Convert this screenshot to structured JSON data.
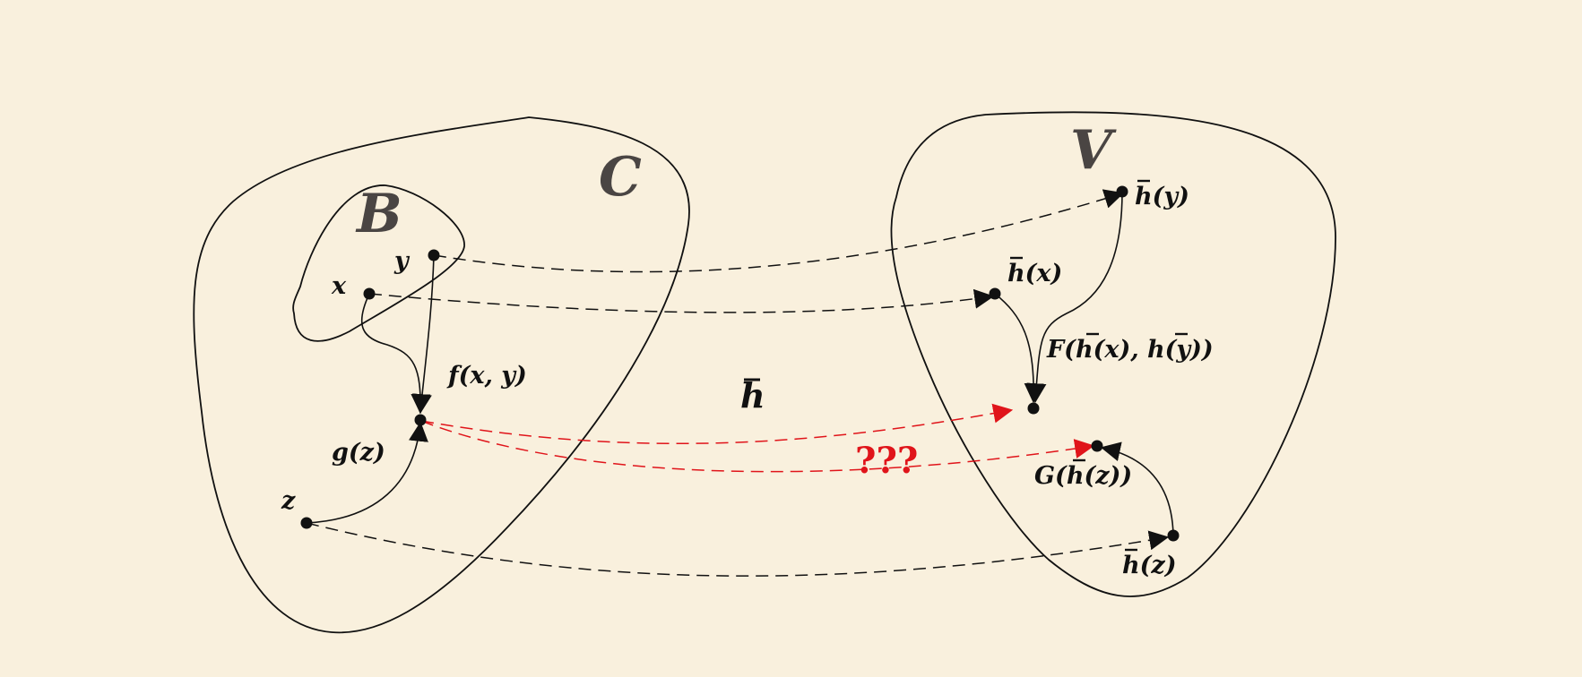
{
  "sets": {
    "C": "C",
    "B": "B",
    "V": "V"
  },
  "points": {
    "x": "x",
    "y": "y",
    "z": "z",
    "hx": "h(x)",
    "hy": "h(y)",
    "hz": "h(z)"
  },
  "maps": {
    "f": "f(x, y)",
    "g": "g(z)",
    "F": "F(h(x), h(y))",
    "G": "G(h(z))",
    "h": "h",
    "unknown": "???"
  },
  "colors": {
    "background": "#f9f0dd",
    "stroke": "#111111",
    "set_label": "#4a4543",
    "unknown": "#e0141a"
  }
}
